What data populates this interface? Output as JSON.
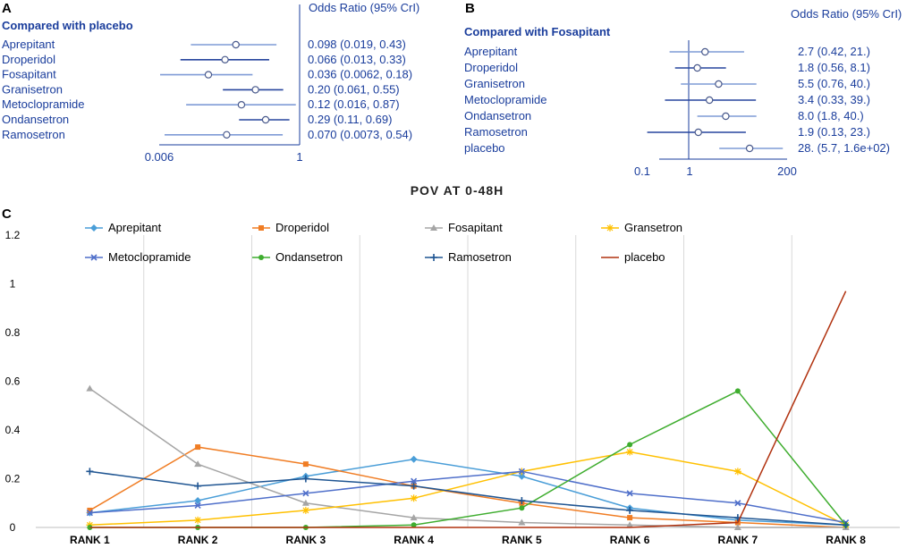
{
  "panelA": {
    "letter": "A",
    "heading": "Compared with placebo",
    "column_header": "Odds Ratio (95% CrI)",
    "axis_ticks": [
      "0.006",
      "1"
    ],
    "rows": [
      {
        "label": "Aprepitant",
        "ci_text": "0.098 (0.019, 0.43)",
        "est": 0.098,
        "lo": 0.019,
        "hi": 0.43
      },
      {
        "label": "Droperidol",
        "ci_text": "0.066 (0.013, 0.33)",
        "est": 0.066,
        "lo": 0.013,
        "hi": 0.33
      },
      {
        "label": "Fosapitant",
        "ci_text": "0.036 (0.0062, 0.18)",
        "est": 0.036,
        "lo": 0.0062,
        "hi": 0.18
      },
      {
        "label": "Granisetron",
        "ci_text": "0.20 (0.061, 0.55)",
        "est": 0.2,
        "lo": 0.061,
        "hi": 0.55
      },
      {
        "label": "Metoclopramide",
        "ci_text": "0.12 (0.016, 0.87)",
        "est": 0.12,
        "lo": 0.016,
        "hi": 0.87
      },
      {
        "label": "Ondansetron",
        "ci_text": "0.29 (0.11, 0.69)",
        "est": 0.29,
        "lo": 0.11,
        "hi": 0.69
      },
      {
        "label": "Ramosetron",
        "ci_text": "0.070 (0.0073, 0.54)",
        "est": 0.07,
        "lo": 0.0073,
        "hi": 0.54
      }
    ]
  },
  "panelB": {
    "letter": "B",
    "heading": "Compared with Fosapitant",
    "column_header": "Odds Ratio (95% CrI)",
    "axis_ticks": [
      "0.1",
      "1",
      "200"
    ],
    "rows": [
      {
        "label": "Aprepitant",
        "ci_text": "2.7 (0.42, 21.)",
        "est": 2.7,
        "lo": 0.42,
        "hi": 21
      },
      {
        "label": "Droperidol",
        "ci_text": "1.8 (0.56, 8.1)",
        "est": 1.8,
        "lo": 0.56,
        "hi": 8.1
      },
      {
        "label": "Granisetron",
        "ci_text": "5.5 (0.76, 40.)",
        "est": 5.5,
        "lo": 0.76,
        "hi": 40
      },
      {
        "label": "Metoclopramide",
        "ci_text": "3.4 (0.33, 39.)",
        "est": 3.4,
        "lo": 0.33,
        "hi": 39
      },
      {
        "label": "Ondansetron",
        "ci_text": "8.0 (1.8, 40.)",
        "est": 8.0,
        "lo": 1.8,
        "hi": 40
      },
      {
        "label": "Ramosetron",
        "ci_text": "1.9 (0.13, 23.)",
        "est": 1.9,
        "lo": 0.13,
        "hi": 23
      },
      {
        "label": "placebo",
        "ci_text": "28. (5.7, 1.6e+02)",
        "est": 28,
        "lo": 5.7,
        "hi": 160
      }
    ]
  },
  "chart_data": {
    "type": "line",
    "letter": "C",
    "title": "POV AT 0-48H",
    "categories": [
      "RANK 1",
      "RANK 2",
      "RANK 3",
      "RANK 4",
      "RANK 5",
      "RANK 6",
      "RANK 7",
      "RANK 8"
    ],
    "ylim": [
      0,
      1.2
    ],
    "yticks": [
      "0",
      "0.2",
      "0.4",
      "0.6",
      "0.8",
      "1",
      "1.2"
    ],
    "xlabel": "",
    "ylabel": "",
    "grid": "vertical",
    "legend_position": "top",
    "series": [
      {
        "name": "Aprepitant",
        "color": "#4a9ed8",
        "marker": "diamond",
        "values": [
          0.06,
          0.11,
          0.21,
          0.28,
          0.21,
          0.08,
          0.03,
          0.01
        ]
      },
      {
        "name": "Droperidol",
        "color": "#f07d24",
        "marker": "square",
        "values": [
          0.07,
          0.33,
          0.26,
          0.17,
          0.1,
          0.04,
          0.02,
          0.0
        ]
      },
      {
        "name": "Fosapitant",
        "color": "#a5a5a5",
        "marker": "triangle",
        "values": [
          0.57,
          0.26,
          0.1,
          0.04,
          0.02,
          0.01,
          0.0,
          0.0
        ]
      },
      {
        "name": "Gransetron",
        "color": "#ffc000",
        "marker": "star",
        "values": [
          0.01,
          0.03,
          0.07,
          0.12,
          0.23,
          0.31,
          0.23,
          0.01
        ]
      },
      {
        "name": "Metoclopramide",
        "color": "#4f6fca",
        "marker": "x",
        "values": [
          0.06,
          0.09,
          0.14,
          0.19,
          0.23,
          0.14,
          0.1,
          0.02
        ]
      },
      {
        "name": "Ondansetron",
        "color": "#3fad2f",
        "marker": "circle",
        "values": [
          0.0,
          0.0,
          0.0,
          0.01,
          0.08,
          0.34,
          0.56,
          0.01
        ]
      },
      {
        "name": "Ramosetron",
        "color": "#1f5592",
        "marker": "plus",
        "values": [
          0.23,
          0.17,
          0.2,
          0.17,
          0.11,
          0.07,
          0.04,
          0.01
        ]
      },
      {
        "name": "placebo",
        "color": "#b1320f",
        "marker": "none",
        "values": [
          0.0,
          0.0,
          0.0,
          0.0,
          0.0,
          0.0,
          0.02,
          0.97
        ]
      }
    ]
  }
}
